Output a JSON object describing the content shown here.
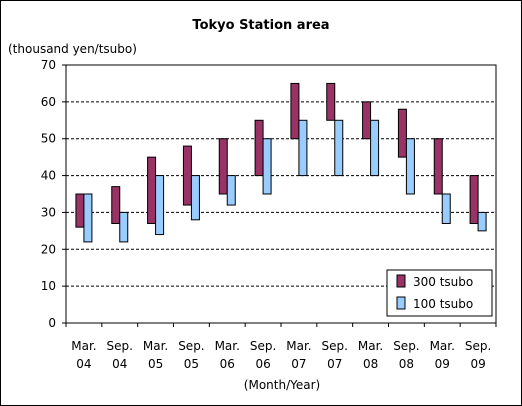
{
  "chart_data": {
    "type": "bar",
    "title": "Tokyo Station area",
    "ylabel": "(thousand yen/tsubo)",
    "xlabel": "(Month/Year)",
    "ylim": [
      0,
      70
    ],
    "yticks": [
      0,
      10,
      20,
      30,
      40,
      50,
      60,
      70
    ],
    "grid": true,
    "legend_position": "bottom-right",
    "categories": [
      [
        "Mar.",
        "04"
      ],
      [
        "Sep.",
        "04"
      ],
      [
        "Mar.",
        "05"
      ],
      [
        "Sep.",
        "05"
      ],
      [
        "Mar.",
        "06"
      ],
      [
        "Sep.",
        "06"
      ],
      [
        "Mar.",
        "07"
      ],
      [
        "Sep.",
        "07"
      ],
      [
        "Mar.",
        "08"
      ],
      [
        "Sep.",
        "08"
      ],
      [
        "Mar.",
        "09"
      ],
      [
        "Sep.",
        "09"
      ]
    ],
    "series": [
      {
        "name": "300 tsubo",
        "color": "#993366",
        "ranges": [
          [
            26,
            35
          ],
          [
            27,
            37
          ],
          [
            27,
            45
          ],
          [
            32,
            48
          ],
          [
            35,
            50
          ],
          [
            40,
            55
          ],
          [
            50,
            65
          ],
          [
            55,
            65
          ],
          [
            50,
            60
          ],
          [
            45,
            58
          ],
          [
            35,
            50
          ],
          [
            27,
            40
          ]
        ]
      },
      {
        "name": "100 tsubo",
        "color": "#99ccff",
        "ranges": [
          [
            22,
            35
          ],
          [
            22,
            30
          ],
          [
            24,
            40
          ],
          [
            28,
            40
          ],
          [
            32,
            40
          ],
          [
            35,
            50
          ],
          [
            40,
            55
          ],
          [
            40,
            55
          ],
          [
            40,
            55
          ],
          [
            35,
            50
          ],
          [
            27,
            35
          ],
          [
            25,
            30
          ]
        ]
      }
    ]
  }
}
